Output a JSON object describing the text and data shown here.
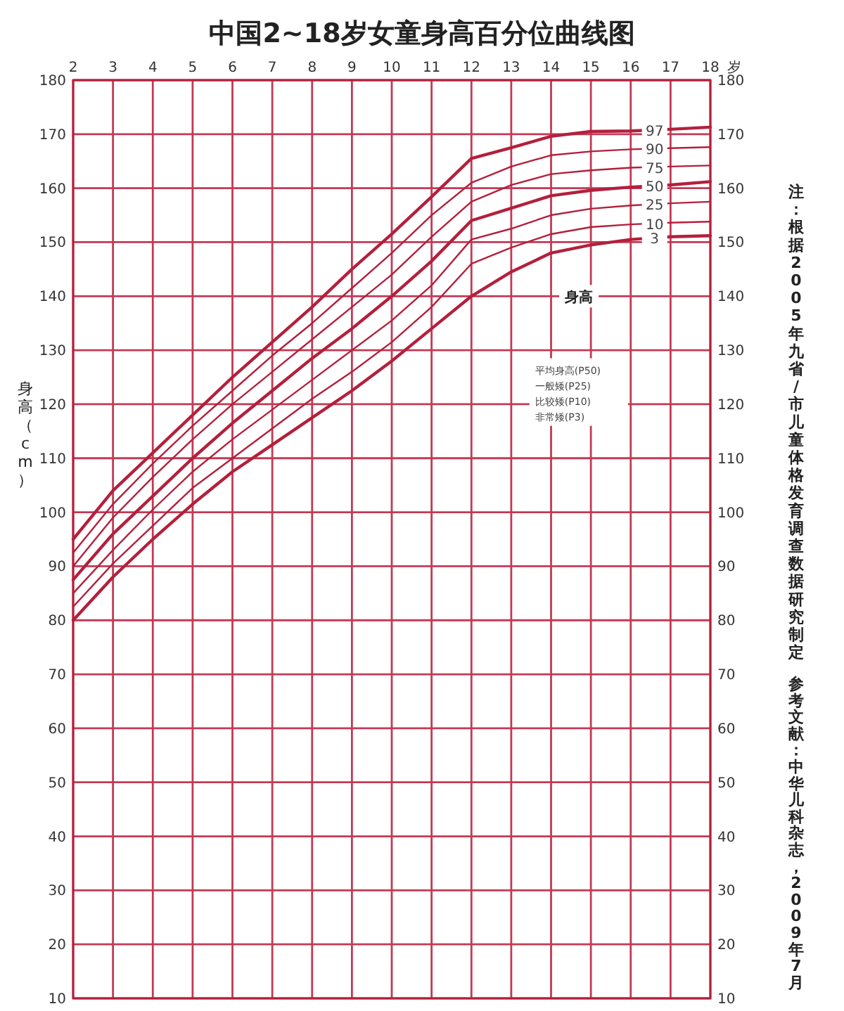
{
  "chart_data": {
    "type": "line",
    "title": "中国2~18岁女童身高百分位曲线图",
    "xlabel": "岁",
    "ylabel": "身高（cm）",
    "x": [
      2,
      3,
      4,
      5,
      6,
      7,
      8,
      9,
      10,
      11,
      12,
      13,
      14,
      15,
      16,
      17,
      18
    ],
    "series": [
      {
        "name": "97",
        "color": "#b3203c",
        "values": [
          95,
          104,
          111,
          118,
          125,
          131.5,
          138,
          145,
          151.5,
          158.4,
          165.5,
          167.5,
          169.6,
          170.5,
          170.6,
          170.9,
          171.3
        ]
      },
      {
        "name": "90",
        "color": "#b3203c",
        "values": [
          92.5,
          101.5,
          109,
          116,
          122.5,
          129,
          135,
          141.5,
          148,
          155,
          161,
          164,
          166.1,
          166.8,
          167.2,
          167.4,
          167.6
        ]
      },
      {
        "name": "75",
        "color": "#b3203c",
        "values": [
          90,
          99,
          106.5,
          113.5,
          120,
          126,
          132,
          138,
          144,
          151,
          157.5,
          160.6,
          162.6,
          163.3,
          163.8,
          164,
          164.2
        ]
      },
      {
        "name": "50",
        "color": "#b3203c",
        "values": [
          87.5,
          96,
          103,
          110,
          116.5,
          122.5,
          128.5,
          134,
          140,
          146.5,
          154,
          156.3,
          158.6,
          159.6,
          160.2,
          160.6,
          161.2
        ]
      },
      {
        "name": "25",
        "color": "#b3203c",
        "values": [
          85,
          93,
          100.5,
          107.5,
          113.5,
          119,
          124.5,
          130,
          135.5,
          142,
          150.5,
          152.5,
          155,
          156.2,
          156.8,
          157.2,
          157.5
        ]
      },
      {
        "name": "10",
        "color": "#b3203c",
        "values": [
          82.5,
          90.5,
          97.5,
          104.5,
          110,
          115.5,
          121,
          126,
          131.5,
          138,
          146,
          149,
          151.5,
          152.8,
          153.3,
          153.6,
          153.8
        ]
      },
      {
        "name": "3",
        "color": "#b3203c",
        "values": [
          80,
          88,
          95,
          101.5,
          107.5,
          112.5,
          117.5,
          122.5,
          128,
          134,
          140,
          144.5,
          148,
          149.5,
          150.5,
          151,
          151.2
        ]
      }
    ],
    "xlim": [
      2,
      18
    ],
    "xticks": [
      2,
      3,
      4,
      5,
      6,
      7,
      8,
      9,
      10,
      11,
      12,
      13,
      14,
      15,
      16,
      17,
      18
    ],
    "ylim": [
      10,
      180
    ],
    "yticks": [
      10,
      20,
      30,
      40,
      50,
      60,
      70,
      80,
      90,
      100,
      110,
      120,
      130,
      140,
      150,
      160,
      170,
      180
    ],
    "y2lim": [
      10,
      180
    ],
    "y2ticks": [
      10,
      20,
      30,
      40,
      50,
      60,
      70,
      80,
      90,
      100,
      110,
      120,
      130,
      140,
      150,
      160,
      170,
      180
    ],
    "grid": true,
    "legend": false,
    "marker": "none",
    "line_style": "solid",
    "annotations": [
      "注：根据2005年九省/市儿童体格发育调查数据研究制定",
      "参考文献：中华儿科杂志，2009年7月",
      "身高",
      "平均身高(P50)",
      "一般矮(P25)",
      "比较矮(P10)",
      "非常矮(P3)"
    ]
  }
}
